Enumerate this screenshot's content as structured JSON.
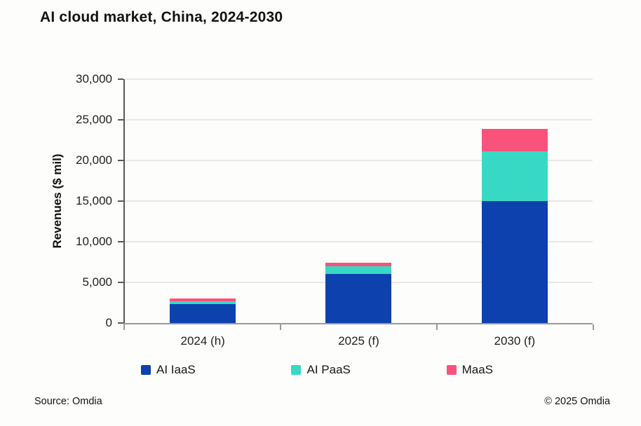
{
  "title": "AI cloud market, China, 2024-2030",
  "footer": {
    "source": "Source: Omdia",
    "copyright": "© 2025 Omdia"
  },
  "colors": {
    "ai_iaas": "#0d41ae",
    "ai_paas": "#38d9c4",
    "maas": "#f9527b",
    "gridline": "#e9e8e5",
    "y_axis": "#5a5a55",
    "x_axis": "#9a9a96"
  },
  "chart_data": {
    "type": "bar",
    "stacked": true,
    "title": "AI cloud market, China, 2024-2030",
    "xlabel": "",
    "ylabel": "Revenues ($ mil)",
    "categories": [
      "2024 (h)",
      "2025 (f)",
      "2030 (f)"
    ],
    "series": [
      {
        "name": "AI IaaS",
        "color": "#0d41ae",
        "values": [
          2300,
          6000,
          15000
        ]
      },
      {
        "name": "AI PaaS",
        "color": "#38d9c4",
        "values": [
          350,
          950,
          6100
        ]
      },
      {
        "name": "MaaS",
        "color": "#f9527b",
        "values": [
          400,
          500,
          2800
        ]
      }
    ],
    "totals": [
      3050,
      7450,
      23900
    ],
    "ylim": [
      0,
      30000
    ],
    "yticks": [
      0,
      5000,
      10000,
      15000,
      20000,
      25000,
      30000
    ],
    "ytick_labels": [
      "0",
      "5,000",
      "10,000",
      "15,000",
      "20,000",
      "25,000",
      "30,000"
    ],
    "grid": "horizontal",
    "legend_position": "bottom",
    "legend": [
      "AI IaaS",
      "AI PaaS",
      "MaaS"
    ]
  }
}
